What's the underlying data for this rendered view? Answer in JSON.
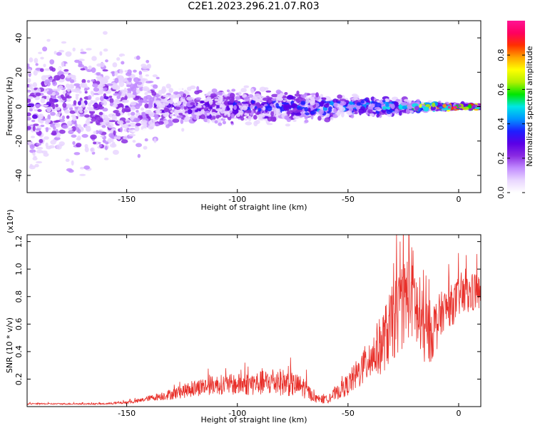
{
  "title": "C2E1.2023.296.21.07.R03",
  "colors": {
    "snr_line": "#e8302a",
    "axis": "#000000",
    "colormap": [
      "#ffffff",
      "#e9d6ff",
      "#c28cff",
      "#8a2be2",
      "#5b00e6",
      "#1e1eff",
      "#0096ff",
      "#00e6e6",
      "#00e600",
      "#b4f000",
      "#ffff00",
      "#ffa500",
      "#ff3000",
      "#ff0060",
      "#ff1493"
    ]
  },
  "chart_data": [
    {
      "type": "heatmap",
      "xlabel": "Height of straight line (km)",
      "ylabel": "Frequency (Hz)",
      "xlim": [
        -195,
        10
      ],
      "ylim": [
        -50,
        50
      ],
      "xticks": [
        -150,
        -100,
        -50,
        0
      ],
      "yticks": [
        -40,
        -20,
        0,
        20,
        40
      ],
      "grid": false,
      "colorbar": {
        "label": "Normalized spectral amplitude",
        "range": [
          0,
          1
        ],
        "ticks": [
          0.0,
          0.2,
          0.4,
          0.6,
          0.8
        ]
      },
      "profile": [
        {
          "x": -195,
          "spread": 50,
          "amplitude": 0.22
        },
        {
          "x": -160,
          "spread": 50,
          "amplitude": 0.22
        },
        {
          "x": -145,
          "spread": 40,
          "amplitude": 0.2
        },
        {
          "x": -130,
          "spread": 15,
          "amplitude": 0.25
        },
        {
          "x": -100,
          "spread": 12,
          "amplitude": 0.3
        },
        {
          "x": -80,
          "spread": 12,
          "amplitude": 0.35
        },
        {
          "x": -60,
          "spread": 9,
          "amplitude": 0.38
        },
        {
          "x": -40,
          "spread": 7,
          "amplitude": 0.42
        },
        {
          "x": -25,
          "spread": 6,
          "amplitude": 0.45
        },
        {
          "x": -15,
          "spread": 3,
          "amplitude": 0.65
        },
        {
          "x": 0,
          "spread": 2,
          "amplitude": 0.92
        },
        {
          "x": 10,
          "spread": 2,
          "amplitude": 0.92
        }
      ]
    },
    {
      "type": "line",
      "xlabel": "Height of straight line (km)",
      "ylabel": "SNR (10 * v/v)",
      "yscale_label": "(x10⁴)",
      "xlim": [
        -195,
        10
      ],
      "ylim": [
        0,
        1.25
      ],
      "xticks": [
        -150,
        -100,
        -50,
        0
      ],
      "yticks": [
        0.2,
        0.4,
        0.6,
        0.8,
        1.0,
        1.2
      ],
      "grid": false,
      "series": [
        {
          "x": [
            -195,
            -180,
            -160,
            -150,
            -145,
            -140,
            -130,
            -120,
            -110,
            -100,
            -90,
            -80,
            -70,
            -65,
            -60,
            -55,
            -50,
            -45,
            -40,
            -35,
            -30,
            -25,
            -22,
            -20,
            -18,
            -15,
            -12,
            -10,
            -7,
            -5,
            -2,
            0,
            3,
            6,
            8,
            10
          ],
          "values": [
            0.02,
            0.02,
            0.02,
            0.03,
            0.04,
            0.06,
            0.09,
            0.13,
            0.16,
            0.16,
            0.17,
            0.18,
            0.14,
            0.06,
            0.05,
            0.1,
            0.16,
            0.25,
            0.35,
            0.45,
            0.6,
            0.75,
            0.85,
            0.8,
            0.6,
            0.55,
            0.55,
            0.6,
            0.7,
            0.72,
            0.75,
            0.8,
            0.8,
            0.82,
            0.85,
            0.8
          ],
          "noise": [
            0.005,
            0.005,
            0.005,
            0.01,
            0.015,
            0.02,
            0.04,
            0.06,
            0.07,
            0.08,
            0.09,
            0.1,
            0.08,
            0.03,
            0.03,
            0.05,
            0.08,
            0.12,
            0.16,
            0.22,
            0.28,
            0.32,
            0.35,
            0.35,
            0.3,
            0.25,
            0.22,
            0.2,
            0.15,
            0.15,
            0.15,
            0.15,
            0.15,
            0.15,
            0.15,
            0.12
          ]
        }
      ]
    }
  ]
}
